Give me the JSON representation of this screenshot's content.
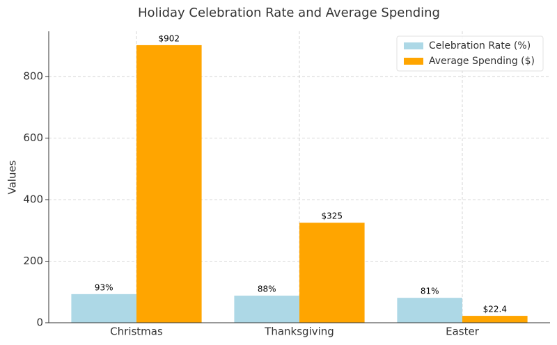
{
  "chart_data": {
    "type": "bar",
    "title": "Holiday Celebration Rate and Average Spending",
    "y_label": "Values",
    "categories": [
      "Christmas",
      "Thanksgiving",
      "Easter"
    ],
    "series": [
      {
        "name": "Celebration Rate (%)",
        "color": "#add8e6",
        "values": [
          93,
          88,
          81
        ],
        "value_labels": [
          "93%",
          "88%",
          "81%"
        ]
      },
      {
        "name": "Average Spending ($)",
        "color": "#ffa500",
        "values": [
          902,
          325,
          22.4
        ],
        "value_labels": [
          "$902",
          "$325",
          "$22.4"
        ]
      }
    ],
    "ylim": [
      0,
      947
    ],
    "yticks": [
      0,
      200,
      400,
      600,
      800
    ],
    "grid": true,
    "legend": "upper right"
  }
}
